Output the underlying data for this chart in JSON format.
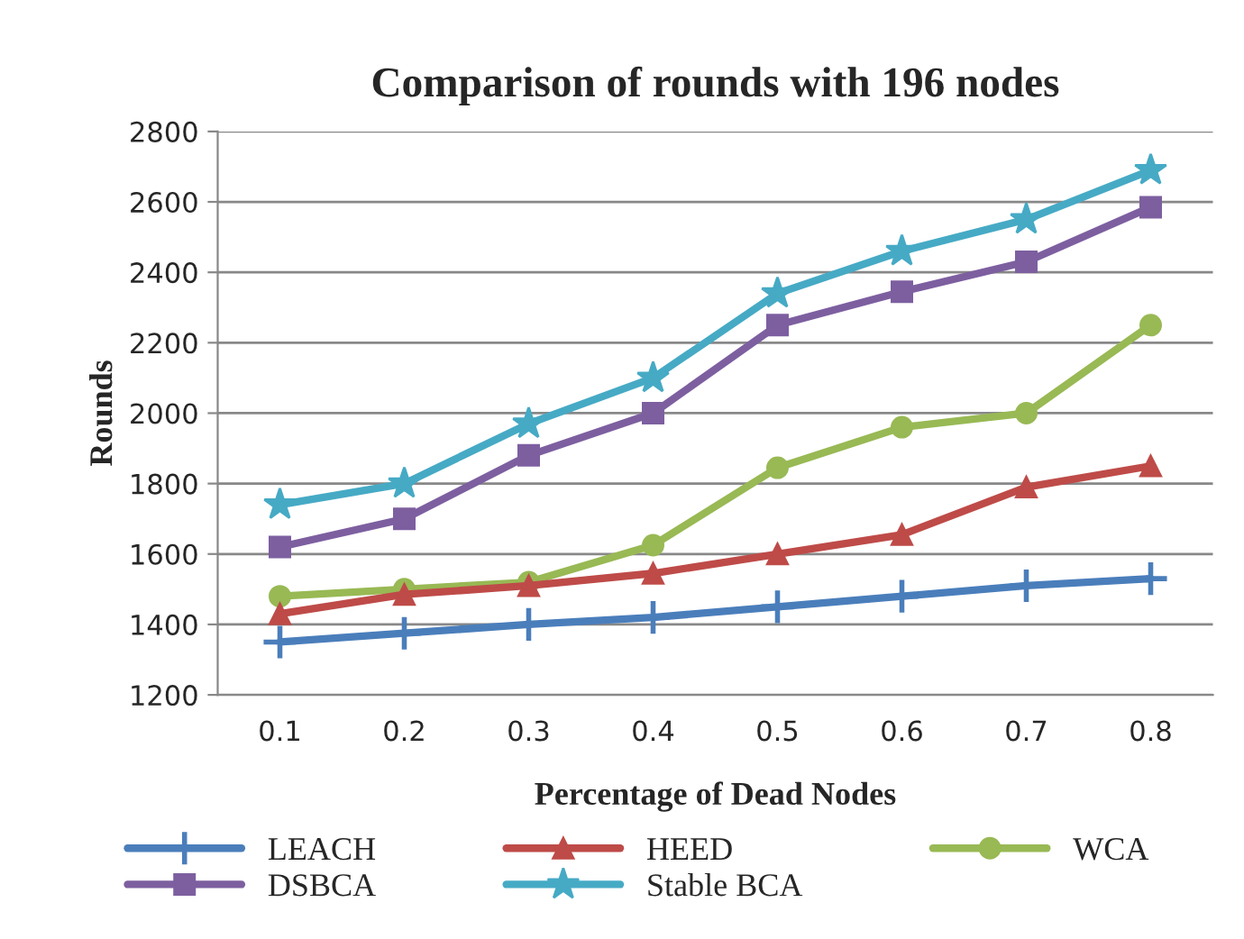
{
  "chart_data": {
    "type": "line",
    "title": "Comparison of rounds with 196 nodes",
    "xlabel": "Percentage of Dead Nodes",
    "ylabel": "Rounds",
    "categories": [
      "0.1",
      "0.2",
      "0.3",
      "0.4",
      "0.5",
      "0.6",
      "0.7",
      "0.8"
    ],
    "series": [
      {
        "name": "LEACH",
        "color": "#4a7ebb",
        "marker": "cross",
        "values": [
          1350,
          1375,
          1400,
          1420,
          1450,
          1480,
          1510,
          1530
        ]
      },
      {
        "name": "HEED",
        "color": "#be4b48",
        "marker": "triangle",
        "values": [
          1430,
          1485,
          1510,
          1545,
          1600,
          1655,
          1790,
          1850
        ]
      },
      {
        "name": "WCA",
        "color": "#98b954",
        "marker": "circle",
        "values": [
          1480,
          1500,
          1520,
          1625,
          1845,
          1960,
          2000,
          2250
        ]
      },
      {
        "name": "DSBCA",
        "color": "#7d5fa0",
        "marker": "square",
        "values": [
          1620,
          1700,
          1880,
          2000,
          2250,
          2345,
          2430,
          2585
        ]
      },
      {
        "name": "Stable BCA",
        "color": "#46aac5",
        "marker": "star",
        "values": [
          1740,
          1800,
          1970,
          2100,
          2340,
          2460,
          2550,
          2690
        ]
      }
    ],
    "ylim": [
      1200,
      2800
    ],
    "yticks": [
      1200,
      1400,
      1600,
      1800,
      2000,
      2200,
      2400,
      2600,
      2800
    ],
    "grid": "y",
    "legend": "bottom",
    "line_style": "solid"
  }
}
